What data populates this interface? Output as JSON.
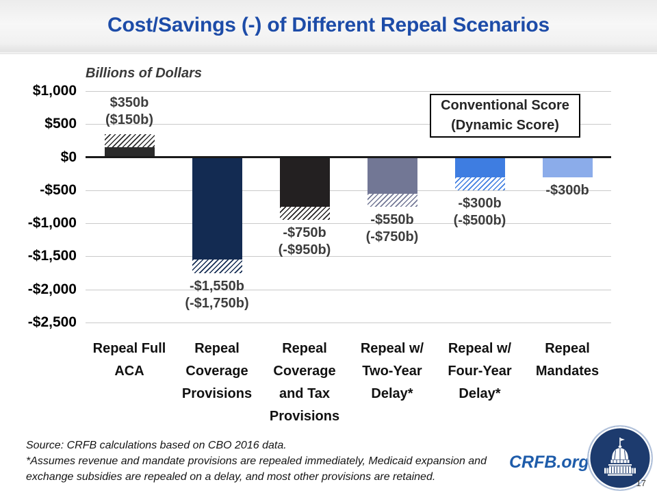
{
  "slide": {
    "title": "Cost/Savings (-) of Different Repeal Scenarios",
    "page_number": "17",
    "brand_text": "CRFB.org"
  },
  "colors": {
    "title_blue": "#1d4ca8",
    "brand_blue": "#1e5caa",
    "logo_navy": "#1d3b6e",
    "gridline_gray": "#c9c9c9",
    "zero_line_black": "#1a1a1a",
    "value_label_gray": "#3d3d3d"
  },
  "chart_data": {
    "type": "bar",
    "title": "Billions of Dollars",
    "grid": true,
    "legend_position": "top-right",
    "legend_lines": [
      "Conventional Score",
      "(Dynamic Score)"
    ],
    "ylim": [
      -2500,
      1000
    ],
    "y_ticks": {
      "values": [
        1000,
        500,
        0,
        -500,
        -1000,
        -1500,
        -2000,
        -2500
      ],
      "labels": [
        "$1,000",
        "$500",
        "$0",
        "-$500",
        "-$1,000",
        "-$1,500",
        "-$2,000",
        "-$2,500"
      ]
    },
    "categories": [
      "Repeal Full ACA",
      "Repeal Coverage Provisions",
      "Repeal Coverage and Tax Provisions",
      "Repeal w/ Two-Year Delay*",
      "Repeal w/ Four-Year Delay*",
      "Repeal Mandates"
    ],
    "category_lines": [
      [
        "Repeal Full",
        "ACA"
      ],
      [
        "Repeal",
        "Coverage",
        "Provisions"
      ],
      [
        "Repeal",
        "Coverage",
        "and Tax",
        "Provisions"
      ],
      [
        "Repeal w/",
        "Two-Year",
        "Delay*"
      ],
      [
        "Repeal w/",
        "Four-Year",
        "Delay*"
      ],
      [
        "Repeal",
        "Mandates"
      ]
    ],
    "series": [
      {
        "name": "Conventional Score",
        "values": [
          350,
          -1550,
          -750,
          -550,
          -300,
          -300
        ]
      },
      {
        "name": "Dynamic Score",
        "values": [
          150,
          -1750,
          -950,
          -750,
          -500,
          null
        ]
      }
    ],
    "value_labels": [
      [
        "$350b",
        "($150b)"
      ],
      [
        "-$1,550b",
        "(-$1,750b)"
      ],
      [
        "-$750b",
        "(-$950b)"
      ],
      [
        "-$550b",
        "(-$750b)"
      ],
      [
        "-$300b",
        "(-$500b)"
      ],
      [
        "-$300b"
      ]
    ],
    "bar_colors": [
      "#2b2b2b",
      "#132b52",
      "#232021",
      "#727795",
      "#3e7de1",
      "#8bacea"
    ]
  },
  "footnote": {
    "line1": "Source: CRFB calculations based on CBO 2016 data.",
    "line2": "*Assumes revenue and mandate provisions are repealed immediately, Medicaid expansion and",
    "line3": "exchange subsidies are repealed on a delay, and most other provisions are retained."
  }
}
